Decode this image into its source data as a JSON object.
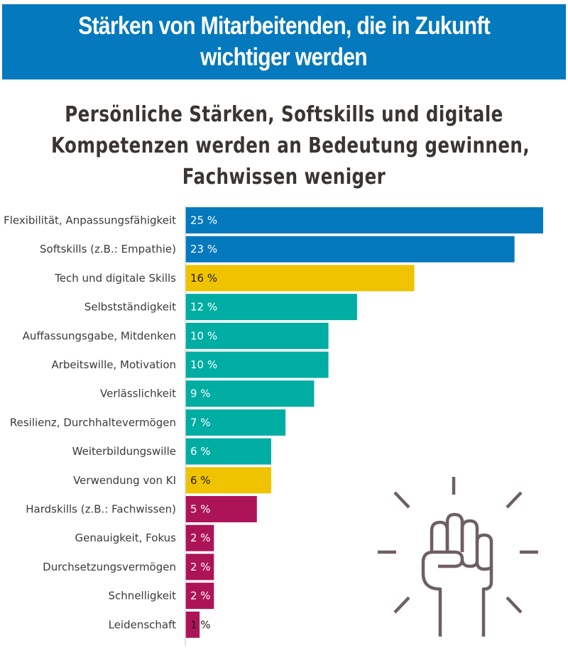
{
  "header": {
    "title_lines": [
      "Stärken von Mitarbeitenden, die in Zukunft",
      "wichtiger werden"
    ]
  },
  "subtitle": {
    "lines": [
      "Persönliche Stärken, Softskills und digitale",
      "Kompetenzen werden an Bedeutung gewinnen,",
      "Fachwissen weniger"
    ]
  },
  "colors": {
    "header_bg": "#0479bd",
    "blue": "#0479bd",
    "yellow": "#f0c300",
    "teal": "#00ada2",
    "magenta": "#ad1457",
    "icon": "#6e5f63"
  },
  "icon": {
    "name": "raised-fist-icon"
  },
  "chart_data": {
    "type": "bar",
    "orientation": "horizontal",
    "title": "Stärken von Mitarbeitenden, die in Zukunft wichtiger werden",
    "subtitle": "Persönliche Stärken, Softskills und digitale Kompetenzen werden an Bedeutung gewinnen, Fachwissen weniger",
    "xlabel": "",
    "ylabel": "",
    "unit": "%",
    "xlim": [
      0,
      25
    ],
    "grid": false,
    "legend": "none",
    "categories": [
      "Flexibilität, Anpassungsfähigkeit",
      "Softskills (z.B.: Empathie)",
      "Tech und digitale Skills",
      "Selbstständigkeit",
      "Auffassungsgabe, Mitdenken",
      "Arbeitswille, Motivation",
      "Verlässlichkeit",
      "Resilienz, Durchhaltevermögen",
      "Weiterbildungswille",
      "Verwendung von KI",
      "Hardskills (z.B.: Fachwissen)",
      "Genauigkeit, Fokus",
      "Durchsetzungsvermögen",
      "Schnelligkeit",
      "Leidenschaft"
    ],
    "values": [
      25,
      23,
      16,
      12,
      10,
      10,
      9,
      7,
      6,
      6,
      5,
      2,
      2,
      2,
      1
    ],
    "value_labels": [
      "25 %",
      "23 %",
      "16 %",
      "12 %",
      "10 %",
      "10 %",
      "9 %",
      "7 %",
      "6 %",
      "6 %",
      "5 %",
      "2 %",
      "2 %",
      "2 %",
      "1 %"
    ],
    "bar_colors": [
      "blue",
      "blue",
      "yellow",
      "teal",
      "teal",
      "teal",
      "teal",
      "teal",
      "teal",
      "yellow",
      "magenta",
      "magenta",
      "magenta",
      "magenta",
      "magenta"
    ]
  }
}
